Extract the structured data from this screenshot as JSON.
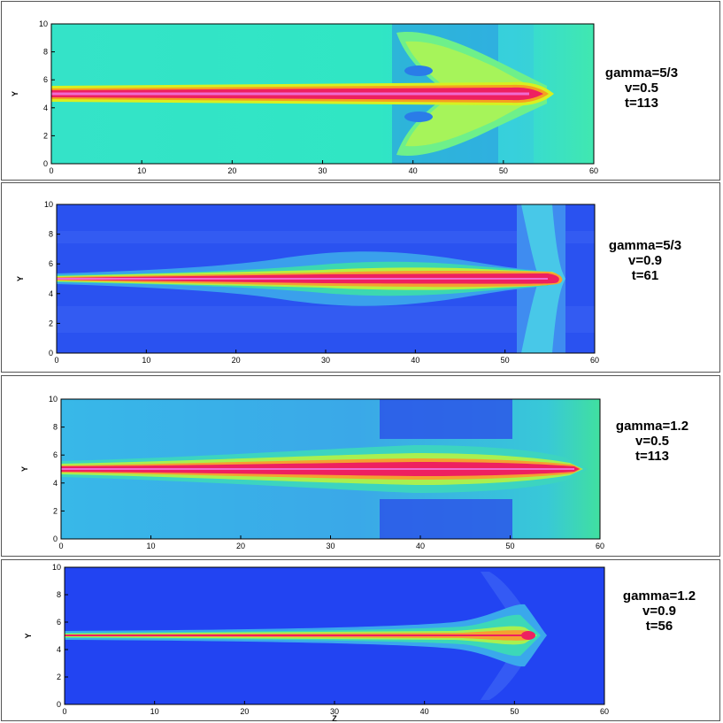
{
  "figure": {
    "x_axis_title": "Z",
    "y_axis_title": "Y",
    "x_ticks": [
      "0",
      "10",
      "20",
      "30",
      "40",
      "50",
      "60"
    ],
    "y_ticks": [
      "0",
      "2",
      "4",
      "6",
      "8",
      "10"
    ]
  },
  "panels": [
    {
      "gamma": "gamma=5/3",
      "velocity": "v=0.5",
      "time": "t=113",
      "background": "#2ee8d0",
      "head_z": 55,
      "style": "cocoon"
    },
    {
      "gamma": "gamma=5/3",
      "velocity": "v=0.9",
      "time": "t=61",
      "background": "#2a52f0",
      "head_z": 57,
      "style": "cigar"
    },
    {
      "gamma": "gamma=1.2",
      "velocity": "v=0.5",
      "time": "t=113",
      "background": "#36b8e8",
      "head_z": 58,
      "style": "long"
    },
    {
      "gamma": "gamma=1.2",
      "velocity": "v=0.9",
      "time": "t=56",
      "background": "#2244f2",
      "head_z": 54,
      "style": "arrow"
    }
  ]
}
